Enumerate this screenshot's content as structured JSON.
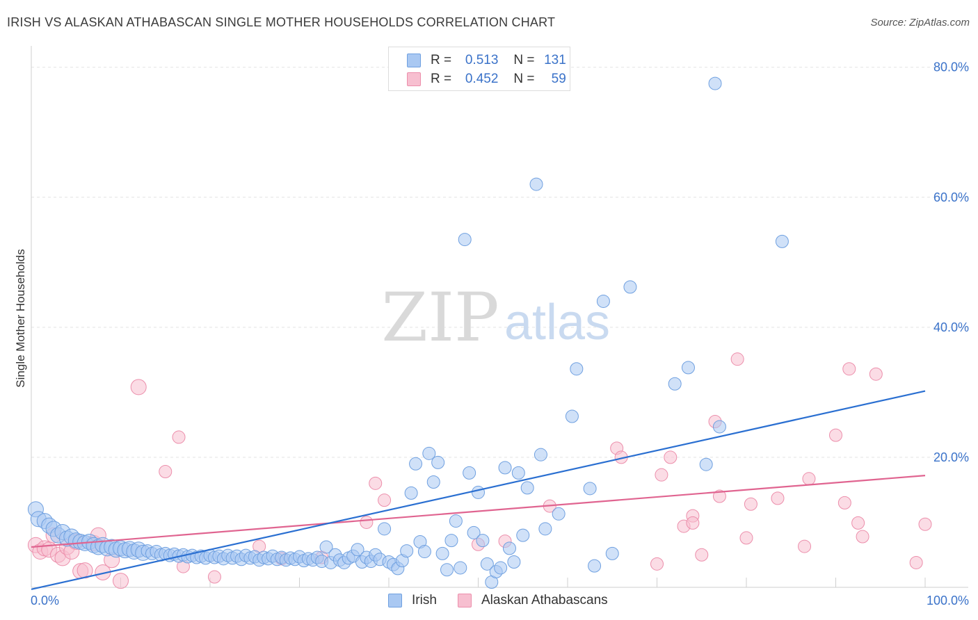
{
  "header": {
    "title": "IRISH VS ALASKAN ATHABASCAN SINGLE MOTHER HOUSEHOLDS CORRELATION CHART",
    "source": "Source: ZipAtlas.com"
  },
  "watermark": {
    "zip": "ZIP",
    "atlas": "atlas"
  },
  "legend": {
    "rows": [
      {
        "r_label": "R =",
        "r_value": "0.513",
        "n_label": "N =",
        "n_value": "131"
      },
      {
        "r_label": "R =",
        "r_value": "0.452",
        "n_label": "N =",
        "n_value": "59"
      }
    ]
  },
  "bottom_legend": {
    "items": [
      "Irish",
      "Alaskan Athabascans"
    ]
  },
  "colors": {
    "irish_fill": "#a9c8f2",
    "irish_stroke": "#6fa0e0",
    "irish_line": "#2a6fd1",
    "alaskan_fill": "#f7bfd0",
    "alaskan_stroke": "#ec8eab",
    "alaskan_line": "#e06490",
    "tick_label": "#3a72c9",
    "grid": "#e4e4e4"
  },
  "chart_data": {
    "type": "scatter",
    "title": "IRISH VS ALASKAN ATHABASCAN SINGLE MOTHER HOUSEHOLDS CORRELATION CHART",
    "xlabel": "",
    "ylabel": "Single Mother Households",
    "xlim": [
      0,
      100
    ],
    "ylim": [
      0,
      82
    ],
    "x_tick_labels": [
      "0.0%",
      "100.0%"
    ],
    "y_ticks": [
      20,
      40,
      60,
      80
    ],
    "y_tick_labels": [
      "20.0%",
      "40.0%",
      "60.0%",
      "80.0%"
    ],
    "grid": true,
    "legend_position": "top-center",
    "series": [
      {
        "name": "Irish",
        "r": 0.513,
        "n": 131,
        "trend": {
          "x": [
            0,
            100
          ],
          "y": [
            -0.3,
            30.2
          ]
        },
        "points": [
          [
            0.5,
            12.0
          ],
          [
            0.8,
            10.5
          ],
          [
            1.5,
            10.2
          ],
          [
            2.0,
            9.5
          ],
          [
            2.5,
            9.0
          ],
          [
            3.0,
            8.0
          ],
          [
            3.5,
            8.5
          ],
          [
            4.0,
            7.5
          ],
          [
            4.5,
            7.8
          ],
          [
            5.0,
            7.2
          ],
          [
            5.5,
            7.0
          ],
          [
            6.0,
            6.8
          ],
          [
            6.5,
            7.0
          ],
          [
            7.0,
            6.5
          ],
          [
            7.5,
            6.2
          ],
          [
            8.0,
            6.5
          ],
          [
            8.5,
            6.0
          ],
          [
            9.0,
            6.2
          ],
          [
            9.5,
            5.8
          ],
          [
            10.0,
            6.0
          ],
          [
            10.5,
            5.7
          ],
          [
            11.0,
            5.9
          ],
          [
            11.5,
            5.5
          ],
          [
            12.0,
            5.8
          ],
          [
            12.5,
            5.3
          ],
          [
            13.0,
            5.6
          ],
          [
            13.5,
            5.2
          ],
          [
            14.0,
            5.5
          ],
          [
            14.5,
            5.0
          ],
          [
            15.0,
            5.2
          ],
          [
            15.5,
            4.9
          ],
          [
            16.0,
            5.1
          ],
          [
            16.5,
            4.8
          ],
          [
            17.0,
            5.0
          ],
          [
            17.5,
            4.7
          ],
          [
            18.0,
            4.9
          ],
          [
            18.5,
            4.6
          ],
          [
            19.0,
            4.8
          ],
          [
            19.5,
            4.5
          ],
          [
            20.0,
            4.9
          ],
          [
            20.5,
            4.6
          ],
          [
            21.0,
            4.8
          ],
          [
            21.5,
            4.4
          ],
          [
            22.0,
            4.9
          ],
          [
            22.5,
            4.5
          ],
          [
            23.0,
            4.8
          ],
          [
            23.5,
            4.3
          ],
          [
            24.0,
            4.9
          ],
          [
            24.5,
            4.5
          ],
          [
            25.0,
            4.7
          ],
          [
            25.5,
            4.2
          ],
          [
            26.0,
            4.6
          ],
          [
            26.5,
            4.4
          ],
          [
            27.0,
            4.8
          ],
          [
            27.5,
            4.3
          ],
          [
            28.0,
            4.6
          ],
          [
            28.5,
            4.2
          ],
          [
            29.0,
            4.5
          ],
          [
            29.5,
            4.3
          ],
          [
            30.0,
            4.7
          ],
          [
            30.5,
            4.1
          ],
          [
            31.0,
            4.4
          ],
          [
            31.5,
            4.2
          ],
          [
            32.0,
            4.6
          ],
          [
            32.5,
            4.0
          ],
          [
            33.0,
            6.2
          ],
          [
            33.5,
            3.8
          ],
          [
            34.0,
            5.0
          ],
          [
            34.5,
            4.2
          ],
          [
            35.0,
            3.8
          ],
          [
            35.5,
            4.5
          ],
          [
            36.0,
            4.8
          ],
          [
            36.5,
            5.8
          ],
          [
            37.0,
            3.9
          ],
          [
            37.5,
            4.6
          ],
          [
            38.0,
            4.0
          ],
          [
            38.5,
            5.0
          ],
          [
            39.0,
            4.3
          ],
          [
            39.5,
            9.0
          ],
          [
            40.0,
            3.9
          ],
          [
            40.5,
            3.5
          ],
          [
            41.0,
            2.9
          ],
          [
            41.5,
            4.1
          ],
          [
            42.0,
            5.6
          ],
          [
            42.5,
            14.5
          ],
          [
            43.0,
            19.0
          ],
          [
            43.5,
            7.0
          ],
          [
            44.0,
            5.5
          ],
          [
            44.5,
            20.6
          ],
          [
            45.0,
            16.2
          ],
          [
            45.5,
            19.2
          ],
          [
            46.0,
            5.2
          ],
          [
            46.5,
            2.7
          ],
          [
            47.0,
            7.2
          ],
          [
            47.5,
            10.2
          ],
          [
            48.0,
            3.0
          ],
          [
            48.5,
            53.5
          ],
          [
            49.0,
            17.6
          ],
          [
            49.5,
            8.4
          ],
          [
            50.0,
            14.6
          ],
          [
            50.5,
            7.2
          ],
          [
            51.0,
            3.6
          ],
          [
            51.5,
            0.8
          ],
          [
            52.0,
            2.4
          ],
          [
            52.5,
            3.0
          ],
          [
            53.0,
            18.4
          ],
          [
            53.5,
            6.0
          ],
          [
            54.0,
            3.9
          ],
          [
            54.5,
            17.6
          ],
          [
            55.0,
            8.0
          ],
          [
            55.5,
            15.3
          ],
          [
            56.5,
            62.0
          ],
          [
            57.0,
            20.4
          ],
          [
            57.5,
            9.0
          ],
          [
            59.0,
            11.3
          ],
          [
            60.5,
            26.3
          ],
          [
            61.0,
            33.6
          ],
          [
            62.5,
            15.2
          ],
          [
            63.0,
            3.3
          ],
          [
            64.0,
            44.0
          ],
          [
            65.0,
            5.2
          ],
          [
            67.0,
            46.2
          ],
          [
            72.0,
            31.3
          ],
          [
            73.5,
            33.8
          ],
          [
            75.5,
            18.9
          ],
          [
            76.5,
            77.5
          ],
          [
            77.0,
            24.7
          ],
          [
            84.0,
            53.2
          ]
        ]
      },
      {
        "name": "Alaskan Athabascans",
        "r": 0.452,
        "n": 59,
        "trend": {
          "x": [
            0,
            100
          ],
          "y": [
            6.2,
            17.2
          ]
        },
        "points": [
          [
            0.5,
            6.5
          ],
          [
            1.0,
            5.5
          ],
          [
            1.5,
            6.0
          ],
          [
            2.0,
            5.8
          ],
          [
            2.5,
            8.0
          ],
          [
            3.0,
            5.0
          ],
          [
            3.5,
            4.5
          ],
          [
            4.0,
            6.2
          ],
          [
            4.5,
            5.5
          ],
          [
            5.0,
            7.0
          ],
          [
            5.5,
            2.5
          ],
          [
            6.0,
            2.6
          ],
          [
            7.0,
            6.8
          ],
          [
            7.5,
            8.0
          ],
          [
            8.0,
            2.3
          ],
          [
            9.0,
            4.2
          ],
          [
            10.0,
            1.0
          ],
          [
            12.0,
            30.8
          ],
          [
            15.0,
            17.8
          ],
          [
            16.5,
            23.1
          ],
          [
            17.0,
            3.2
          ],
          [
            20.5,
            1.6
          ],
          [
            25.5,
            6.3
          ],
          [
            28.0,
            4.4
          ],
          [
            32.5,
            4.6
          ],
          [
            37.5,
            10.0
          ],
          [
            38.5,
            16.0
          ],
          [
            39.5,
            13.4
          ],
          [
            50.0,
            6.6
          ],
          [
            53.0,
            7.1
          ],
          [
            58.0,
            12.5
          ],
          [
            65.5,
            21.4
          ],
          [
            66.0,
            20.0
          ],
          [
            70.0,
            3.6
          ],
          [
            70.5,
            17.3
          ],
          [
            71.5,
            20.0
          ],
          [
            73.0,
            9.4
          ],
          [
            74.0,
            11.0
          ],
          [
            74.0,
            9.9
          ],
          [
            75.0,
            5.0
          ],
          [
            76.5,
            25.5
          ],
          [
            77.0,
            14.0
          ],
          [
            79.0,
            35.1
          ],
          [
            80.0,
            7.6
          ],
          [
            80.5,
            12.8
          ],
          [
            83.5,
            13.7
          ],
          [
            86.5,
            6.3
          ],
          [
            87.0,
            16.7
          ],
          [
            90.0,
            23.4
          ],
          [
            91.0,
            13.0
          ],
          [
            91.5,
            33.6
          ],
          [
            92.5,
            9.9
          ],
          [
            93.0,
            7.8
          ],
          [
            94.5,
            32.8
          ],
          [
            99.0,
            3.8
          ],
          [
            100.0,
            9.7
          ]
        ]
      }
    ]
  }
}
